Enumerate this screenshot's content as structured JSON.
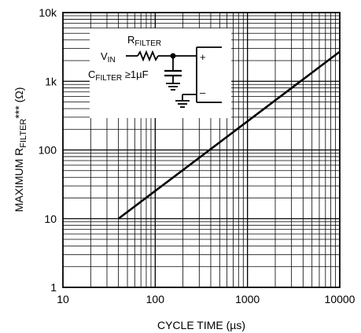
{
  "chart_data": {
    "type": "line",
    "title": "",
    "xlabel": "CYCLE TIME (µs)",
    "ylabel": {
      "prefix": "MAXIMUM R",
      "subscript": "FILTER",
      "suffix": "*** (Ω)"
    },
    "x_scale": "log",
    "y_scale": "log",
    "xlim": [
      10,
      10000
    ],
    "ylim": [
      1,
      10000
    ],
    "x_ticks": [
      {
        "value": 10,
        "label": "10"
      },
      {
        "value": 100,
        "label": "100"
      },
      {
        "value": 1000,
        "label": "1000"
      },
      {
        "value": 10000,
        "label": "10000"
      }
    ],
    "y_ticks": [
      {
        "value": 1,
        "label": "1"
      },
      {
        "value": 10,
        "label": "10"
      },
      {
        "value": 100,
        "label": "100"
      },
      {
        "value": 1000,
        "label": "1k"
      },
      {
        "value": 10000,
        "label": "10k"
      }
    ],
    "grid": true,
    "series": [
      {
        "color": "#000000",
        "x": [
          40,
          10000
        ],
        "y": [
          10,
          2700
        ]
      }
    ],
    "inset_schematic": {
      "r_label_main": "R",
      "r_label_sub": "FILTER",
      "vin_main": "V",
      "vin_sub": "IN",
      "c_label_main": "C",
      "c_label_sub": "FILTER",
      "c_label_suffix": " ≥1µF",
      "plus": "+",
      "minus": "–"
    }
  }
}
